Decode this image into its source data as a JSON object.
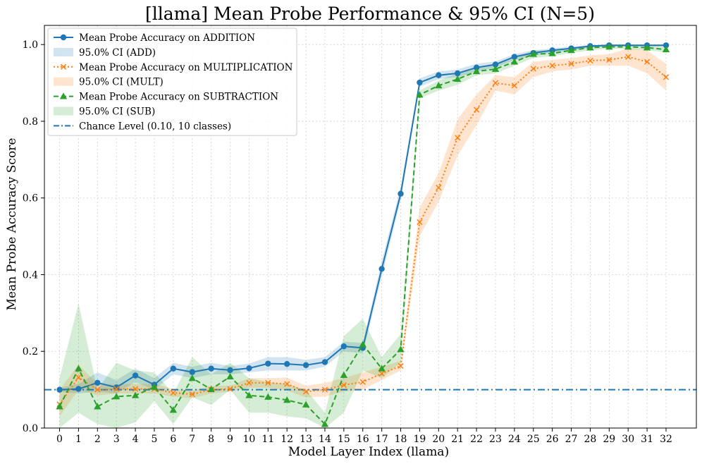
{
  "chart_data": {
    "type": "line",
    "title": "[llama] Mean Probe Performance & 95% CI (N=5)",
    "xlabel": "Model Layer Index (llama)",
    "ylabel": "Mean Probe Accuracy Score",
    "xlim": [
      -0.8,
      33.6
    ],
    "ylim": [
      0.0,
      1.05
    ],
    "x": [
      0,
      1,
      2,
      3,
      4,
      5,
      6,
      7,
      8,
      9,
      10,
      11,
      12,
      13,
      14,
      15,
      16,
      17,
      18,
      19,
      20,
      21,
      22,
      23,
      24,
      25,
      26,
      27,
      28,
      29,
      30,
      31,
      32
    ],
    "yticks": [
      0.0,
      0.2,
      0.4,
      0.6,
      0.8,
      1.0
    ],
    "ytick_labels": [
      "0.0",
      "0.2",
      "0.4",
      "0.6",
      "0.8",
      "1.0"
    ],
    "grid": true,
    "legend_location": "top-left",
    "series": [
      {
        "name": "Mean Probe Accuracy on ADDITION",
        "ci_name": "95.0% CI (ADD)",
        "color": "#1f77b4",
        "marker": "circle",
        "linestyle": "solid",
        "values": [
          0.1,
          0.102,
          0.118,
          0.106,
          0.137,
          0.113,
          0.155,
          0.146,
          0.155,
          0.151,
          0.156,
          0.168,
          0.167,
          0.164,
          0.172,
          0.213,
          0.209,
          0.415,
          0.611,
          0.901,
          0.92,
          0.925,
          0.94,
          0.948,
          0.968,
          0.978,
          0.985,
          0.99,
          0.996,
          0.998,
          0.998,
          0.998,
          0.998
        ],
        "ci_lower": [
          0.095,
          0.09,
          0.095,
          0.09,
          0.12,
          0.1,
          0.14,
          0.13,
          0.14,
          0.14,
          0.145,
          0.15,
          0.15,
          0.15,
          0.16,
          0.2,
          0.195,
          0.395,
          0.595,
          0.89,
          0.91,
          0.915,
          0.93,
          0.94,
          0.96,
          0.97,
          0.98,
          0.985,
          0.992,
          0.995,
          0.995,
          0.995,
          0.995
        ],
        "ci_upper": [
          0.105,
          0.115,
          0.145,
          0.125,
          0.155,
          0.13,
          0.17,
          0.16,
          0.17,
          0.162,
          0.168,
          0.185,
          0.185,
          0.178,
          0.185,
          0.225,
          0.222,
          0.435,
          0.628,
          0.912,
          0.93,
          0.935,
          0.95,
          0.956,
          0.975,
          0.985,
          0.99,
          0.995,
          0.999,
          1.0,
          1.0,
          1.0,
          1.0
        ]
      },
      {
        "name": "Mean Probe Accuracy on MULTIPLICATION",
        "ci_name": "95.0% CI (MULT)",
        "color": "#ff7f0e",
        "marker": "x",
        "linestyle": "dotted",
        "values": [
          0.062,
          0.132,
          0.1,
          0.102,
          0.102,
          0.102,
          0.092,
          0.088,
          0.1,
          0.102,
          0.118,
          0.118,
          0.115,
          0.095,
          0.1,
          0.112,
          0.12,
          0.142,
          0.162,
          0.537,
          0.627,
          0.757,
          0.83,
          0.9,
          0.893,
          0.937,
          0.945,
          0.95,
          0.958,
          0.96,
          0.968,
          0.955,
          0.915
        ],
        "ci_lower": [
          0.03,
          0.1,
          0.085,
          0.09,
          0.09,
          0.09,
          0.082,
          0.078,
          0.09,
          0.095,
          0.105,
          0.105,
          0.098,
          0.08,
          0.082,
          0.095,
          0.1,
          0.125,
          0.15,
          0.5,
          0.59,
          0.71,
          0.79,
          0.88,
          0.87,
          0.915,
          0.93,
          0.935,
          0.945,
          0.945,
          0.945,
          0.925,
          0.88
        ],
        "ci_upper": [
          0.1,
          0.165,
          0.115,
          0.115,
          0.115,
          0.115,
          0.102,
          0.098,
          0.11,
          0.11,
          0.13,
          0.13,
          0.132,
          0.11,
          0.118,
          0.13,
          0.145,
          0.16,
          0.175,
          0.575,
          0.665,
          0.805,
          0.87,
          0.92,
          0.915,
          0.955,
          0.96,
          0.965,
          0.972,
          0.975,
          0.99,
          0.985,
          0.95
        ]
      },
      {
        "name": "Mean Probe Accuracy on SUBTRACTION",
        "ci_name": "95.0% CI (SUB)",
        "color": "#2ca02c",
        "marker": "triangle",
        "linestyle": "dashed",
        "values": [
          0.056,
          0.155,
          0.056,
          0.082,
          0.085,
          0.107,
          0.047,
          0.13,
          0.101,
          0.134,
          0.085,
          0.081,
          0.073,
          0.061,
          0.01,
          0.138,
          0.218,
          0.155,
          0.205,
          0.869,
          0.893,
          0.91,
          0.93,
          0.936,
          0.955,
          0.975,
          0.977,
          0.985,
          0.992,
          0.994,
          0.994,
          0.992,
          0.987
        ],
        "ci_lower": [
          0.0,
          0.04,
          0.01,
          0.0,
          0.015,
          0.07,
          0.01,
          0.08,
          0.06,
          0.1,
          0.04,
          0.04,
          0.03,
          0.025,
          0.0,
          0.04,
          0.15,
          0.13,
          0.17,
          0.86,
          0.88,
          0.895,
          0.92,
          0.925,
          0.945,
          0.965,
          0.97,
          0.978,
          0.985,
          0.99,
          0.988,
          0.985,
          0.98
        ],
        "ci_upper": [
          0.13,
          0.325,
          0.1,
          0.17,
          0.15,
          0.145,
          0.09,
          0.185,
          0.14,
          0.17,
          0.13,
          0.12,
          0.115,
          0.1,
          0.04,
          0.24,
          0.285,
          0.185,
          0.245,
          0.88,
          0.906,
          0.925,
          0.94,
          0.947,
          0.965,
          0.985,
          0.984,
          0.992,
          0.998,
          0.998,
          0.998,
          0.998,
          0.994
        ]
      }
    ],
    "reference_line": {
      "name": "Chance Level (0.10, 10 classes)",
      "value": 0.1,
      "color": "#1f77b4",
      "linestyle": "dashdot"
    }
  }
}
